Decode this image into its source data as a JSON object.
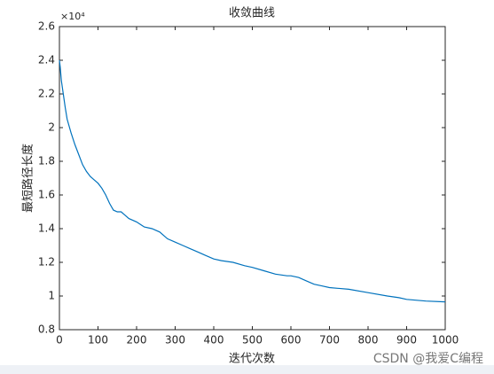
{
  "chart_data": {
    "type": "line",
    "title": "收敛曲线",
    "x_label": "迭代次数",
    "y_label": "最短路径长度",
    "y_exponent": "×10⁴",
    "watermark": "CSDN @我爱C编程",
    "x": [
      0,
      2,
      5,
      10,
      15,
      20,
      30,
      40,
      50,
      60,
      70,
      80,
      90,
      100,
      110,
      120,
      130,
      140,
      150,
      160,
      170,
      180,
      200,
      220,
      240,
      260,
      280,
      300,
      320,
      340,
      360,
      380,
      400,
      420,
      450,
      480,
      500,
      530,
      560,
      590,
      600,
      620,
      640,
      660,
      680,
      700,
      750,
      800,
      850,
      880,
      900,
      950,
      1000
    ],
    "y": [
      2.4,
      2.36,
      2.28,
      2.2,
      2.12,
      2.05,
      1.97,
      1.9,
      1.84,
      1.78,
      1.74,
      1.71,
      1.69,
      1.67,
      1.64,
      1.6,
      1.55,
      1.51,
      1.5,
      1.5,
      1.48,
      1.46,
      1.44,
      1.41,
      1.4,
      1.38,
      1.34,
      1.32,
      1.3,
      1.28,
      1.26,
      1.24,
      1.22,
      1.21,
      1.2,
      1.18,
      1.17,
      1.15,
      1.13,
      1.12,
      1.12,
      1.11,
      1.09,
      1.07,
      1.06,
      1.05,
      1.04,
      1.02,
      1.0,
      0.99,
      0.98,
      0.97,
      0.965
    ],
    "color": "#0072bd",
    "xlim": [
      0,
      1000
    ],
    "xticks": [
      0,
      100,
      200,
      300,
      400,
      500,
      600,
      700,
      800,
      900,
      1000
    ],
    "ylim": [
      0.8,
      2.6
    ],
    "yticks": [
      0.8,
      1,
      1.2,
      1.4,
      1.6,
      1.8,
      2,
      2.2,
      2.4,
      2.6
    ],
    "grid": false
  }
}
